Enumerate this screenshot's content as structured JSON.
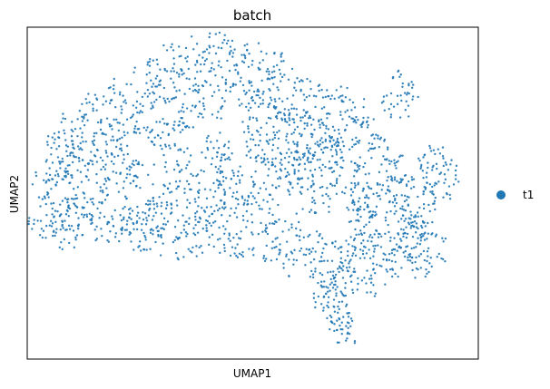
{
  "chart_data": {
    "type": "scatter",
    "title": "batch",
    "xlabel": "UMAP1",
    "ylabel": "UMAP2",
    "grid": false,
    "ticks": false,
    "legend_position": "right",
    "series": [
      {
        "name": "t1",
        "color": "#1f77b4",
        "points": [
          [
            -5.5,
            0.5
          ],
          [
            -5.2,
            0.8
          ],
          [
            -4.9,
            1.2
          ],
          [
            -5.3,
            -0.3
          ],
          [
            -4.6,
            0.1
          ],
          [
            -4.1,
            0.9
          ],
          [
            -3.7,
            1.6
          ],
          [
            -3.3,
            2.2
          ],
          [
            -2.9,
            2.6
          ],
          [
            -2.4,
            2.9
          ],
          [
            -1.8,
            3.1
          ],
          [
            -1.2,
            3.4
          ],
          [
            -0.6,
            3.2
          ],
          [
            0.1,
            2.9
          ],
          [
            0.6,
            2.5
          ],
          [
            1.1,
            2.3
          ],
          [
            1.7,
            2.2
          ],
          [
            2.1,
            1.9
          ],
          [
            2.5,
            1.3
          ],
          [
            3.1,
            0.7
          ],
          [
            3.6,
            0.3
          ],
          [
            4.1,
            -0.1
          ],
          [
            4.5,
            -0.4
          ],
          [
            4.9,
            0.2
          ],
          [
            5.1,
            0.8
          ],
          [
            4.7,
            1.3
          ],
          [
            3.8,
            0.9
          ],
          [
            3.3,
            1.5
          ],
          [
            3.8,
            2.6
          ],
          [
            4.1,
            3.1
          ],
          [
            2.8,
            -0.6
          ],
          [
            2.4,
            -1.2
          ],
          [
            2.1,
            -1.8
          ],
          [
            2.0,
            -2.4
          ],
          [
            2.2,
            -2.9
          ],
          [
            2.4,
            -3.3
          ],
          [
            1.6,
            -1.0
          ],
          [
            0.9,
            -0.6
          ],
          [
            0.2,
            -0.4
          ],
          [
            -0.5,
            -0.1
          ],
          [
            -1.1,
            0.2
          ],
          [
            -1.8,
            0.6
          ],
          [
            -2.3,
            0.3
          ],
          [
            -3.0,
            -0.1
          ],
          [
            -3.7,
            0.3
          ],
          [
            -4.4,
            -0.2
          ],
          [
            -4.0,
            -0.6
          ],
          [
            -3.2,
            -0.8
          ],
          [
            -2.1,
            -0.6
          ],
          [
            -1.3,
            -0.4
          ],
          [
            -0.2,
            0.4
          ],
          [
            0.4,
            1.1
          ],
          [
            1.2,
            1.2
          ],
          [
            1.9,
            0.8
          ],
          [
            2.7,
            0.2
          ],
          [
            3.4,
            -0.5
          ],
          [
            4.3,
            -0.9
          ],
          [
            4.8,
            -1.1
          ],
          [
            4.0,
            -1.4
          ],
          [
            3.2,
            -1.0
          ],
          [
            -4.8,
            2.0
          ],
          [
            -4.3,
            2.5
          ],
          [
            -3.6,
            2.9
          ],
          [
            -2.8,
            3.4
          ],
          [
            -2.0,
            3.8
          ],
          [
            -1.4,
            4.0
          ],
          [
            -0.8,
            4.1
          ],
          [
            -0.2,
            3.9
          ],
          [
            0.5,
            3.6
          ],
          [
            -1.6,
            2.3
          ],
          [
            -2.6,
            1.8
          ],
          [
            -3.4,
            1.1
          ],
          [
            -0.9,
            1.5
          ],
          [
            0.1,
            1.9
          ],
          [
            0.9,
            1.7
          ],
          [
            1.5,
            1.5
          ],
          [
            -0.3,
            -1.0
          ],
          [
            0.6,
            -1.3
          ],
          [
            1.3,
            -1.5
          ],
          [
            -5.6,
            -0.6
          ],
          [
            -4.9,
            -0.8
          ],
          [
            -2.7,
            -1.0
          ],
          [
            -1.7,
            -1.1
          ],
          [
            -0.9,
            -0.9
          ],
          [
            2.9,
            -2.0
          ],
          [
            3.5,
            -1.7
          ],
          [
            4.4,
            -1.6
          ],
          [
            2.3,
            -2.6
          ],
          [
            1.9,
            -2.1
          ],
          [
            2.6,
            -1.5
          ],
          [
            3.0,
            1.9
          ],
          [
            2.2,
            2.7
          ],
          [
            1.4,
            3.0
          ],
          [
            0.8,
            3.3
          ],
          [
            -3.9,
            1.9
          ],
          [
            -4.7,
            0.9
          ],
          [
            -5.0,
            -0.2
          ],
          [
            -3.5,
            -0.4
          ],
          [
            -2.5,
            -0.3
          ],
          [
            -1.5,
            -0.2
          ],
          [
            -0.7,
            0.7
          ],
          [
            0.3,
            0.2
          ],
          [
            1.0,
            0.5
          ],
          [
            1.7,
            0.1
          ],
          [
            2.4,
            0.6
          ],
          [
            3.0,
            0.0
          ],
          [
            3.9,
            0.4
          ],
          [
            4.6,
            0.6
          ],
          [
            4.3,
            -0.5
          ],
          [
            3.7,
            -1.1
          ],
          [
            -2.2,
            2.1
          ],
          [
            -1.1,
            2.6
          ],
          [
            -0.1,
            2.6
          ],
          [
            0.9,
            2.2
          ],
          [
            1.8,
            1.7
          ],
          [
            2.6,
            2.4
          ],
          [
            -4.5,
            1.5
          ],
          [
            -5.1,
            1.6
          ],
          [
            -3.0,
            0.8
          ],
          [
            -2.0,
            1.2
          ],
          [
            -1.0,
            1.1
          ],
          [
            0.2,
            1.4
          ],
          [
            1.1,
            0.9
          ],
          [
            2.0,
            1.3
          ]
        ]
      }
    ]
  }
}
